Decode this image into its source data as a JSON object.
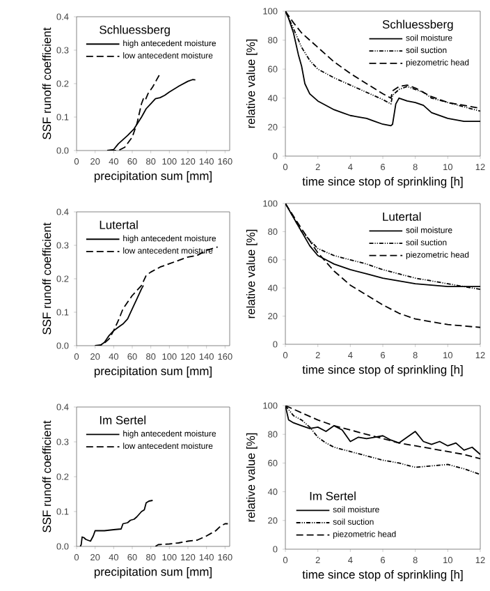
{
  "chart_data": [
    {
      "type": "line",
      "legend_title": "Schluessberg",
      "xlabel": "precipitation sum [mm]",
      "ylabel": "SSF runoff coefficient",
      "xlim": [
        0,
        165
      ],
      "ylim": [
        0,
        0.4
      ],
      "xticks": [
        0,
        20,
        40,
        60,
        80,
        100,
        120,
        140,
        160
      ],
      "yticks": [
        {
          "value": 0,
          "label": "0.0"
        },
        {
          "value": 0.1,
          "label": "0.1"
        },
        {
          "value": 0.2,
          "label": "0.2"
        },
        {
          "value": 0.3,
          "label": "0.3"
        },
        {
          "value": 0.4,
          "label": "0.4"
        }
      ],
      "legend": "top left",
      "series": [
        {
          "name": "high antecedent moisture",
          "color": "#000000",
          "line_style": "solid",
          "x": [
            33,
            40,
            45,
            55,
            62,
            70,
            75,
            80,
            85,
            90,
            95,
            100,
            110,
            120,
            125,
            128
          ],
          "values": [
            0,
            0.003,
            0.02,
            0.045,
            0.065,
            0.1,
            0.125,
            0.14,
            0.155,
            0.158,
            0.165,
            0.175,
            0.192,
            0.207,
            0.212,
            0.211
          ]
        },
        {
          "name": "low antecedent moisture",
          "color": "#000000",
          "line_style": "dashed",
          "x": [
            35,
            45,
            52,
            60,
            65,
            70,
            72,
            74,
            77,
            82,
            86,
            89
          ],
          "values": [
            0,
            0,
            0.01,
            0.04,
            0.08,
            0.14,
            0.155,
            0.15,
            0.17,
            0.19,
            0.21,
            0.225
          ]
        }
      ]
    },
    {
      "type": "line",
      "legend_title": "Schluessberg",
      "xlabel": "time since stop of sprinkling [h]",
      "ylabel": "relative value [%]",
      "xlim": [
        0,
        12
      ],
      "ylim": [
        0,
        100
      ],
      "xticks": [
        0,
        2,
        4,
        6,
        8,
        10,
        12
      ],
      "yticks": [
        0,
        20,
        40,
        60,
        80,
        100
      ],
      "legend": "top right",
      "series": [
        {
          "name": "soil moisture",
          "color": "#000000",
          "line_style": "solid",
          "x": [
            0,
            0.2,
            0.5,
            0.8,
            1,
            1.2,
            1.5,
            2,
            2.5,
            3,
            3.5,
            4,
            4.5,
            5,
            5.5,
            6,
            6.5,
            6.6,
            6.8,
            7,
            7.5,
            8,
            8.5,
            9,
            10,
            11,
            12
          ],
          "values": [
            100,
            95,
            85,
            70,
            62,
            50,
            43,
            38,
            35,
            32,
            30,
            28,
            27,
            26,
            24,
            22,
            21,
            22,
            36,
            40,
            38,
            37,
            35,
            30,
            26,
            24,
            24
          ]
        },
        {
          "name": "soil suction",
          "color": "#000000",
          "line_style": "dotted",
          "x": [
            0,
            0.5,
            1,
            1.5,
            2,
            3,
            4,
            5,
            6,
            6.5,
            6.6,
            7,
            7.5,
            8,
            8.5,
            9,
            10,
            11,
            12
          ],
          "values": [
            100,
            88,
            75,
            66,
            60,
            54,
            49,
            44,
            39,
            36,
            42,
            46,
            48,
            46,
            44,
            40,
            37,
            34,
            31
          ]
        },
        {
          "name": "piezometric head",
          "color": "#000000",
          "line_style": "dashed",
          "x": [
            0,
            0.5,
            1,
            2,
            3,
            4,
            5,
            6,
            6.5,
            6.6,
            7,
            7.5,
            8,
            9,
            10,
            11,
            12
          ],
          "values": [
            100,
            92,
            85,
            75,
            65,
            57,
            50,
            43,
            40,
            45,
            48,
            49,
            47,
            41,
            37,
            35,
            33
          ]
        }
      ]
    },
    {
      "type": "line",
      "legend_title": "Lutertal",
      "xlabel": "precipitation sum [mm]",
      "ylabel": "SSF runoff coefficient",
      "xlim": [
        0,
        165
      ],
      "ylim": [
        0,
        0.4
      ],
      "xticks": [
        0,
        20,
        40,
        60,
        80,
        100,
        120,
        140,
        160
      ],
      "yticks": [
        {
          "value": 0,
          "label": "0.0"
        },
        {
          "value": 0.1,
          "label": "0.1"
        },
        {
          "value": 0.2,
          "label": "0.2"
        },
        {
          "value": 0.3,
          "label": "0.3"
        },
        {
          "value": 0.4,
          "label": "0.4"
        }
      ],
      "legend": "top left",
      "series": [
        {
          "name": "high antecedent moisture",
          "color": "#000000",
          "line_style": "solid",
          "x": [
            20,
            25,
            30,
            35,
            40,
            45,
            50,
            55,
            60,
            65,
            70,
            72
          ],
          "values": [
            0,
            0,
            0.01,
            0.03,
            0.045,
            0.055,
            0.065,
            0.08,
            0.11,
            0.14,
            0.17,
            0.18
          ]
        },
        {
          "name": "low antecedent moisture",
          "color": "#000000",
          "line_style": "dashed",
          "x": [
            20,
            28,
            35,
            40,
            45,
            50,
            55,
            60,
            65,
            70,
            75,
            80,
            90,
            100,
            110,
            120,
            130,
            140,
            152
          ],
          "values": [
            0,
            0.003,
            0.02,
            0.045,
            0.075,
            0.11,
            0.13,
            0.15,
            0.165,
            0.18,
            0.21,
            0.22,
            0.235,
            0.245,
            0.255,
            0.265,
            0.27,
            0.285,
            0.295
          ]
        }
      ]
    },
    {
      "type": "line",
      "legend_title": "Lutertal",
      "xlabel": "time since stop of sprinkling [h]",
      "ylabel": "relative value [%]",
      "xlim": [
        0,
        12
      ],
      "ylim": [
        0,
        100
      ],
      "xticks": [
        0,
        2,
        4,
        6,
        8,
        10,
        12
      ],
      "yticks": [
        0,
        20,
        40,
        60,
        80,
        100
      ],
      "legend": "top right",
      "series": [
        {
          "name": "soil moisture",
          "color": "#000000",
          "line_style": "solid",
          "x": [
            0,
            0.5,
            1,
            1.5,
            2,
            2.5,
            3,
            3.5,
            4,
            5,
            6,
            7,
            8,
            9,
            10,
            11,
            12
          ],
          "values": [
            100,
            90,
            80,
            70,
            63,
            60,
            57,
            55,
            53,
            50,
            47,
            45,
            43,
            42,
            41,
            41,
            41
          ]
        },
        {
          "name": "soil suction",
          "color": "#000000",
          "line_style": "dotted",
          "x": [
            0,
            1,
            2,
            3,
            4,
            5,
            6,
            7,
            8,
            9,
            10,
            11,
            12
          ],
          "values": [
            100,
            80,
            68,
            63,
            60,
            57,
            53,
            50,
            47,
            45,
            43,
            41,
            39
          ]
        },
        {
          "name": "piezometric head",
          "color": "#000000",
          "line_style": "dashed",
          "x": [
            0,
            1,
            2,
            3,
            4,
            5,
            6,
            7,
            8,
            9,
            10,
            11,
            12
          ],
          "values": [
            100,
            82,
            65,
            52,
            42,
            35,
            28,
            22,
            18,
            16,
            14,
            13,
            12
          ]
        }
      ]
    },
    {
      "type": "line",
      "legend_title": "Im Sertel",
      "xlabel": "precipitation sum [mm]",
      "ylabel": "SSF runoff coefficient",
      "xlim": [
        0,
        165
      ],
      "ylim": [
        0,
        0.4
      ],
      "xticks": [
        0,
        20,
        40,
        60,
        80,
        100,
        120,
        140,
        160
      ],
      "yticks": [
        {
          "value": 0,
          "label": "0.0"
        },
        {
          "value": 0.1,
          "label": "0.1"
        },
        {
          "value": 0.2,
          "label": "0.2"
        },
        {
          "value": 0.3,
          "label": "0.3"
        },
        {
          "value": 0.4,
          "label": "0.4"
        }
      ],
      "legend": "top left",
      "series": [
        {
          "name": "high antecedent moisture",
          "color": "#000000",
          "line_style": "solid",
          "x": [
            4,
            5,
            6,
            8,
            10,
            15,
            18,
            20,
            30,
            40,
            48,
            50,
            55,
            58,
            62,
            65,
            70,
            73,
            75,
            78,
            82
          ],
          "values": [
            0,
            0.005,
            0.027,
            0.025,
            0.02,
            0.015,
            0.03,
            0.045,
            0.045,
            0.048,
            0.05,
            0.065,
            0.068,
            0.075,
            0.078,
            0.085,
            0.1,
            0.105,
            0.125,
            0.13,
            0.132
          ]
        },
        {
          "name": "low antecedent moisture",
          "color": "#000000",
          "line_style": "dashed",
          "x": [
            85,
            88,
            100,
            110,
            120,
            130,
            140,
            150,
            155,
            160,
            163
          ],
          "values": [
            0,
            0.005,
            0.007,
            0.01,
            0.015,
            0.018,
            0.03,
            0.045,
            0.058,
            0.065,
            0.065
          ]
        }
      ]
    },
    {
      "type": "line",
      "legend_title": "Im Sertel",
      "xlabel": "time since stop of sprinkling [h]",
      "ylabel": "relative value [%]",
      "xlim": [
        0,
        12
      ],
      "ylim": [
        0,
        100
      ],
      "xticks": [
        0,
        2,
        4,
        6,
        8,
        10,
        12
      ],
      "yticks": [
        0,
        20,
        40,
        60,
        80,
        100
      ],
      "legend": "bottom left",
      "series": [
        {
          "name": "soil moisture",
          "color": "#000000",
          "line_style": "solid",
          "x": [
            0,
            0.2,
            0.5,
            1,
            1.5,
            2,
            2.5,
            3,
            3.5,
            4,
            4.5,
            5,
            5.5,
            6,
            6.5,
            7,
            7.5,
            8,
            8.5,
            9,
            9.5,
            10,
            10.5,
            11,
            11.5,
            12
          ],
          "values": [
            100,
            90,
            88,
            86,
            84,
            85,
            82,
            86,
            83,
            75,
            78,
            77,
            78,
            79,
            76,
            74,
            78,
            82,
            75,
            73,
            75,
            72,
            74,
            69,
            71,
            66
          ]
        },
        {
          "name": "soil suction",
          "color": "#000000",
          "line_style": "dotted",
          "x": [
            0,
            0.5,
            1,
            1.5,
            2,
            2.5,
            3,
            4,
            5,
            6,
            7,
            8,
            9,
            10,
            11,
            12
          ],
          "values": [
            100,
            93,
            90,
            85,
            78,
            74,
            71,
            68,
            65,
            62,
            60,
            57,
            58,
            59,
            56,
            52
          ]
        },
        {
          "name": "piezometric head",
          "color": "#000000",
          "line_style": "dashed",
          "x": [
            0,
            1,
            2,
            3,
            4,
            5,
            6,
            7,
            8,
            9,
            10,
            11,
            12
          ],
          "values": [
            100,
            95,
            90,
            86,
            83,
            80,
            77,
            74,
            72,
            70,
            68,
            66,
            63
          ]
        }
      ]
    }
  ]
}
